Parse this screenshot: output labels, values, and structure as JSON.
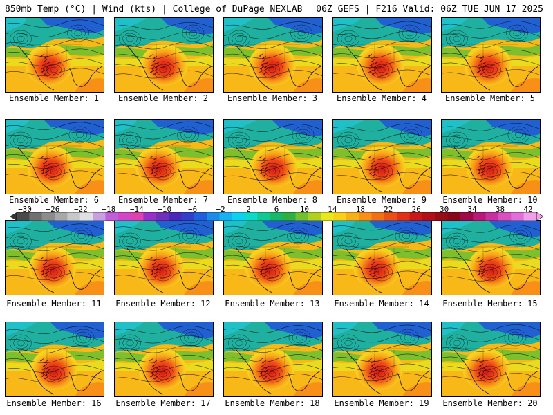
{
  "header": {
    "left_title": "850mb Temp (°C) | Wind (kts) | College of DuPage NEXLAB",
    "right_title": "06Z GEFS | F216 Valid: 06Z TUE JUN 17 2025"
  },
  "panels": [
    {
      "label": "Ensemble Member: 1"
    },
    {
      "label": "Ensemble Member: 2"
    },
    {
      "label": "Ensemble Member: 3"
    },
    {
      "label": "Ensemble Member: 4"
    },
    {
      "label": "Ensemble Member: 5"
    },
    {
      "label": "Ensemble Member: 6"
    },
    {
      "label": "Ensemble Member: 7"
    },
    {
      "label": "Ensemble Member: 8"
    },
    {
      "label": "Ensemble Member: 9"
    },
    {
      "label": "Ensemble Member: 10"
    },
    {
      "label": "Ensemble Member: 11"
    },
    {
      "label": "Ensemble Member: 12"
    },
    {
      "label": "Ensemble Member: 13"
    },
    {
      "label": "Ensemble Member: 14"
    },
    {
      "label": "Ensemble Member: 15"
    },
    {
      "label": "Ensemble Member: 16"
    },
    {
      "label": "Ensemble Member: 17"
    },
    {
      "label": "Ensemble Member: 18"
    },
    {
      "label": "Ensemble Member: 19"
    },
    {
      "label": "Ensemble Member: 20"
    }
  ],
  "colorbar": {
    "labels": [
      "−30",
      "−26",
      "−22",
      "−18",
      "−14",
      "−10",
      "−6",
      "−2",
      "2",
      "6",
      "10",
      "14",
      "18",
      "22",
      "26",
      "30",
      "34",
      "38",
      "42"
    ],
    "colors": [
      "#4a4a4a",
      "#707070",
      "#8c8c8c",
      "#a8a8a8",
      "#c8c8c8",
      "#e0e0e0",
      "#c8a0e0",
      "#c060d8",
      "#d048c8",
      "#e040b0",
      "#9830c8",
      "#7030b8",
      "#4a28b8",
      "#3040c8",
      "#2060d8",
      "#1c8ce8",
      "#18b0f0",
      "#10d0f0",
      "#10d8c8",
      "#10c890",
      "#18b868",
      "#30b040",
      "#70c030",
      "#b0d020",
      "#e8e820",
      "#f8d018",
      "#f8b018",
      "#f89018",
      "#f07018",
      "#e85018",
      "#e03018",
      "#c81818",
      "#b01018",
      "#980c18",
      "#880818",
      "#a00848",
      "#b81878",
      "#c830a0",
      "#d850c0",
      "#e070d8",
      "#f0a0e8"
    ]
  }
}
